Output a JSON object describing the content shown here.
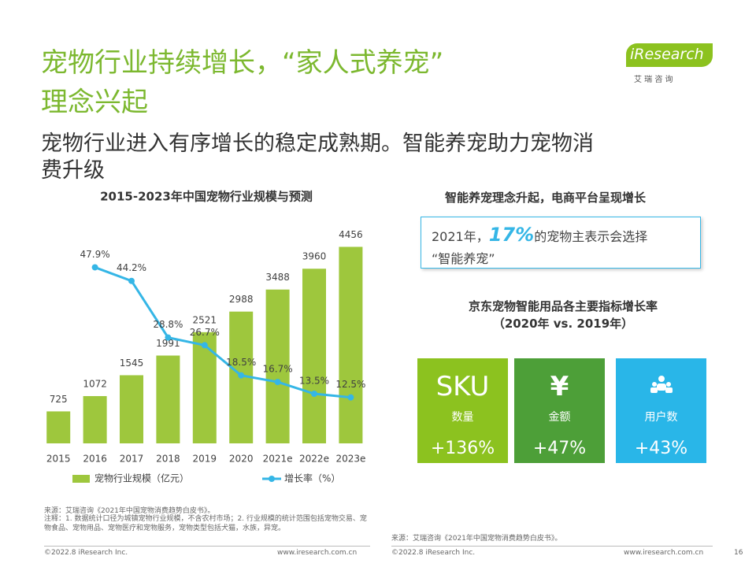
{
  "header": {
    "title_line1": "宠物行业持续增长，“家人式养宠”",
    "title_line2": "理念兴起",
    "subtitle_line1": "宠物行业进入有序增长的稳定成熟期。智能养宠助力宠物消",
    "subtitle_line2": "费升级"
  },
  "logo": {
    "brand": "iResearch",
    "cn": "艾 瑞 咨 询"
  },
  "chart_data": {
    "type": "bar",
    "title": "2015-2023年中国宠物行业规模与预测",
    "categories": [
      "2015",
      "2016",
      "2017",
      "2018",
      "2019",
      "2020",
      "2021e",
      "2022e",
      "2023e"
    ],
    "series": [
      {
        "name": "宠物行业规模（亿元）",
        "type": "bar",
        "color": "#9ec73d",
        "values": [
          725,
          1072,
          1545,
          1991,
          2521,
          2988,
          3488,
          3960,
          4456
        ]
      },
      {
        "name": "增长率（%）",
        "type": "line",
        "axis": "y2",
        "color": "#35b6e6",
        "values": [
          null,
          47.9,
          44.2,
          28.8,
          26.7,
          18.5,
          16.7,
          13.5,
          12.5
        ],
        "value_labels": [
          null,
          "47.9%",
          "44.2%",
          "28.8%",
          "26.7%",
          "18.5%",
          "16.7%",
          "13.5%",
          "12.5%"
        ]
      }
    ],
    "ylim": [
      0,
      5000
    ],
    "y2lim": [
      0,
      60
    ],
    "legend": "bottom"
  },
  "panel": {
    "heading": "智能养宠理念升起，电商平台呈现增长",
    "highlight_pre": "2021年，",
    "highlight_num": "17%",
    "highlight_post": "的宠物主表示会选择",
    "highlight_line2": "“智能养宠”",
    "cards_title_line1": "京东宠物智能用品各主要指标增长率",
    "cards_title_line2": "（2020年 vs. 2019年）",
    "cards": [
      {
        "icon": "SKU",
        "label": "数量",
        "value": "+136%"
      },
      {
        "icon": "¥",
        "label": "金额",
        "value": "+47%"
      },
      {
        "label": "用户数",
        "value": "+43%"
      }
    ]
  },
  "notes": {
    "source_left": "来源：艾瑞咨询《2021年中国宠物消费趋势白皮书》。",
    "note": "注释：1. 数据统计口径为城镇宠物行业规模，不含农村市场；2. 行业规模的统计范围包括宠物交易、宠物食品、宠物用品、宠物医疗和宠物服务，宠物类型包括犬猫，水族，异宠。",
    "source_right": "来源：艾瑞咨询《2021年中国宠物消费趋势白皮书》。"
  },
  "footer": {
    "copyright_left": "©2022.8 iResearch Inc.",
    "url_left": "www.iresearch.com.cn",
    "copyright_right": "©2022.8 iResearch Inc.",
    "url_right": "www.iresearch.com.cn",
    "page": "16"
  }
}
